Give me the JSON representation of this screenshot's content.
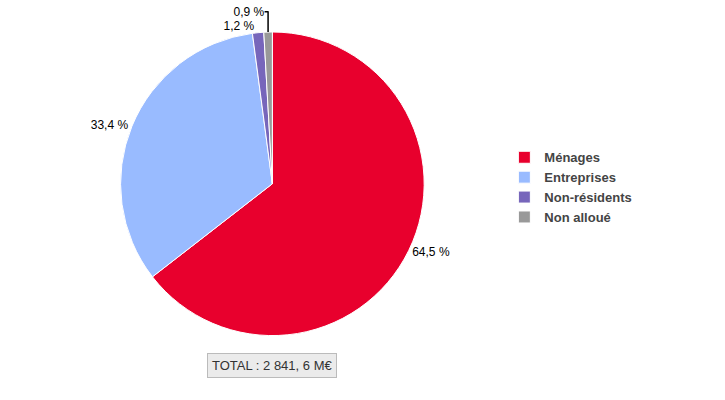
{
  "chart_data": {
    "type": "pie",
    "categories": [
      "Ménages",
      "Entreprises",
      "Non-résidents",
      "Non alloué"
    ],
    "values": [
      64.5,
      33.4,
      1.2,
      0.9
    ],
    "value_labels": [
      "64,5 %",
      "33,4 %",
      "1,2 %",
      "0,9 %"
    ],
    "colors": [
      "#e8002d",
      "#99bbff",
      "#7766bb",
      "#999999"
    ],
    "data_labels": true,
    "legend": "right",
    "annotations": [
      "TOTAL : 2 841, 6 M€"
    ]
  }
}
